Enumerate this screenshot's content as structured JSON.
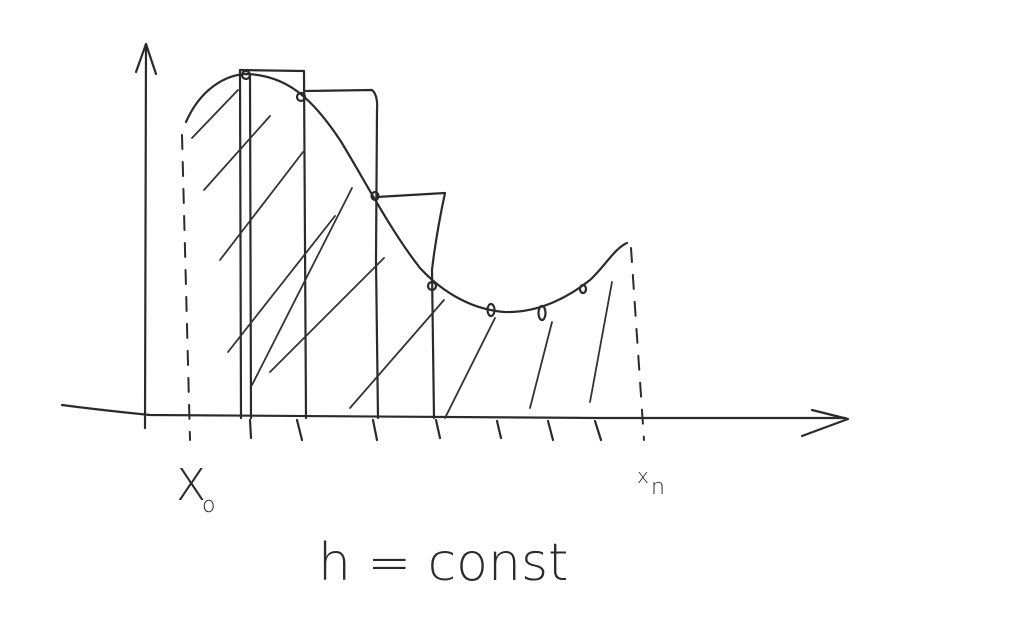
{
  "diagram": {
    "labels": {
      "x_start": "X",
      "x_start_subscript": "o",
      "x_end": "x",
      "x_end_subscript": "n",
      "step_note": "h = const"
    },
    "style": {
      "ink_color": "#2b2b2b",
      "background": "#ffffff"
    }
  }
}
